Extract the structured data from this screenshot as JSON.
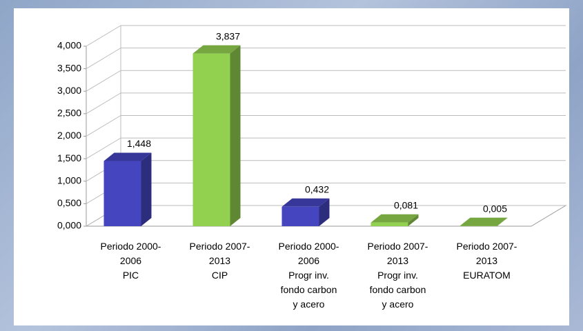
{
  "chart_data": {
    "type": "bar3d",
    "categories": [
      "Periodo 2000-\n2006\nPIC",
      "Periodo 2007-\n2013\nCIP",
      "Periodo 2000-\n2006\nProgr inv.\nfondo carbon\ny  acero",
      "Periodo 2007-\n2013\nProgr inv.\nfondo carbon\ny  acero",
      "Periodo 2007-\n2013\nEURATOM"
    ],
    "values": [
      1.448,
      3.837,
      0.432,
      0.081,
      0.005
    ],
    "value_labels": [
      "1,448",
      "3,837",
      "0,432",
      "0,081",
      "0,005"
    ],
    "colors": [
      "#4545c0",
      "#92d050",
      "#4545c0",
      "#92d050",
      "#92d050"
    ],
    "ylim": [
      0,
      4
    ],
    "yticks": [
      {
        "value": 0,
        "label": "0,000"
      },
      {
        "value": 0.5,
        "label": "0,500"
      },
      {
        "value": 1,
        "label": "1,000"
      },
      {
        "value": 1.5,
        "label": "1,500"
      },
      {
        "value": 2,
        "label": "2,000"
      },
      {
        "value": 2.5,
        "label": "2,500"
      },
      {
        "value": 3,
        "label": "3,000"
      },
      {
        "value": 3.5,
        "label": "3,500"
      },
      {
        "value": 4,
        "label": "4,000"
      }
    ],
    "grid": true
  }
}
